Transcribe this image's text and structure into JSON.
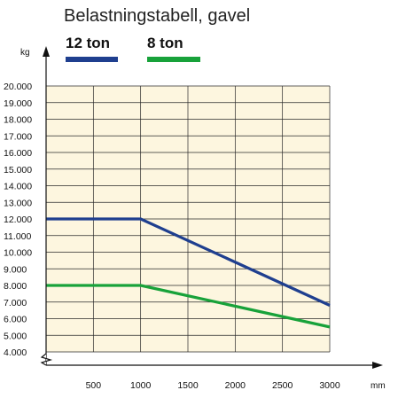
{
  "chart_data": {
    "type": "line",
    "title": "Belastningstabell, gavel",
    "ylabel": "kg",
    "xlabel": "mm",
    "xlim": [
      0,
      3000
    ],
    "ylim": [
      4000,
      20000
    ],
    "y_ticks": [
      "20.000",
      "19.000",
      "18.000",
      "17.000",
      "16.000",
      "15.000",
      "14.000",
      "13.000",
      "12.000",
      "11.000",
      "10.000",
      "9.000",
      "8.000",
      "7.000",
      "6.000",
      "5.000",
      "4.000"
    ],
    "y_tick_values": [
      20000,
      19000,
      18000,
      17000,
      16000,
      15000,
      14000,
      13000,
      12000,
      11000,
      10000,
      9000,
      8000,
      7000,
      6000,
      5000,
      4000
    ],
    "x_ticks": [
      "500",
      "1000",
      "1500",
      "2000",
      "2500",
      "3000"
    ],
    "x_tick_values": [
      500,
      1000,
      1500,
      2000,
      2500,
      3000
    ],
    "grid": true,
    "axis_break": "y",
    "legend_position": "top",
    "series": [
      {
        "name": "12 ton",
        "color": "#1f3f8f",
        "x": [
          0,
          1000,
          3000
        ],
        "y": [
          12000,
          12000,
          6800
        ]
      },
      {
        "name": "8 ton",
        "color": "#18a23a",
        "x": [
          0,
          1000,
          3000
        ],
        "y": [
          8000,
          8000,
          5500
        ]
      }
    ]
  }
}
